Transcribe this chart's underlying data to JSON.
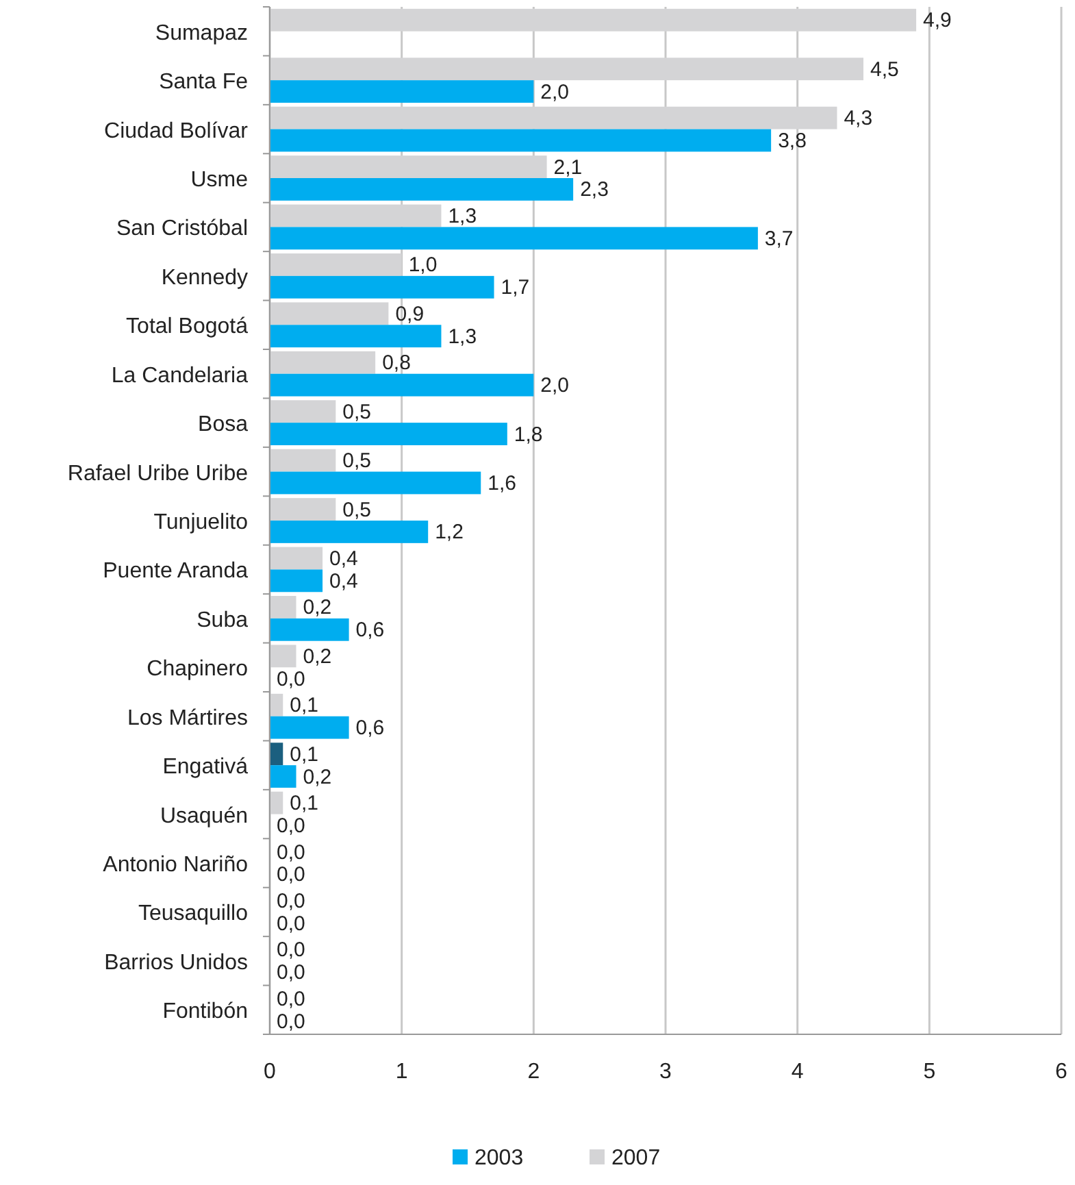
{
  "chart_data": {
    "type": "bar",
    "orientation": "horizontal",
    "categories": [
      "Sumapaz",
      "Santa Fe",
      "Ciudad Bolívar",
      "Usme",
      "San Cristóbal",
      "Kennedy",
      "Total Bogotá",
      "La Candelaria",
      "Bosa",
      "Rafael Uribe Uribe",
      "Tunjuelito",
      "Puente Aranda",
      "Suba",
      "Chapinero",
      "Los Mártires",
      "Engativá",
      "Usaquén",
      "Antonio Nariño",
      "Teusaquillo",
      "Barrios Unidos",
      "Fontibón"
    ],
    "series": [
      {
        "name": "2007",
        "color": "#d4d4d6",
        "colors": [
          "#d4d4d6",
          "#d4d4d6",
          "#d4d4d6",
          "#d4d4d6",
          "#d4d4d6",
          "#d4d4d6",
          "#d4d4d6",
          "#d4d4d6",
          "#d4d4d6",
          "#d4d4d6",
          "#d4d4d6",
          "#d4d4d6",
          "#d4d4d6",
          "#d4d4d6",
          "#d4d4d6",
          "#1b5f7f",
          "#d4d4d6",
          "#d4d4d6",
          "#d4d4d6",
          "#d4d4d6",
          "#d4d4d6"
        ],
        "values": [
          4.9,
          4.5,
          4.3,
          2.1,
          1.3,
          1.0,
          0.9,
          0.8,
          0.5,
          0.5,
          0.5,
          0.4,
          0.2,
          0.2,
          0.1,
          0.1,
          0.1,
          0,
          0,
          0,
          0
        ],
        "value_labels": [
          "4,9",
          "4,5",
          "4,3",
          "2,1",
          "1,3",
          "1,0",
          "0,9",
          "0,8",
          "0,5",
          "0,5",
          "0,5",
          "0,4",
          "0,2",
          "0,2",
          "0,1",
          "0,1",
          "0,1",
          "0,0",
          "0,0",
          "0,0",
          "0,0"
        ]
      },
      {
        "name": "2003",
        "color": "#00adef",
        "values": [
          null,
          2.0,
          3.8,
          2.3,
          3.7,
          1.7,
          1.3,
          2.0,
          1.8,
          1.6,
          1.2,
          0.4,
          0.6,
          0,
          0.6,
          0.2,
          0,
          0,
          0,
          0,
          0
        ],
        "value_labels": [
          null,
          "2,0",
          "3,8",
          "2,3",
          "3,7",
          "1,7",
          "1,3",
          "2,0",
          "1,8",
          "1,6",
          "1,2",
          "0,4",
          "0,6",
          "0,0",
          "0,6",
          "0,2",
          "0,0",
          "0,0",
          "0,0",
          "0,0",
          "0,0"
        ]
      }
    ],
    "xlim": [
      0,
      6
    ],
    "xticks": [
      0,
      1,
      2,
      3,
      4,
      5,
      6
    ],
    "grid": "x",
    "legend": "bottom"
  }
}
